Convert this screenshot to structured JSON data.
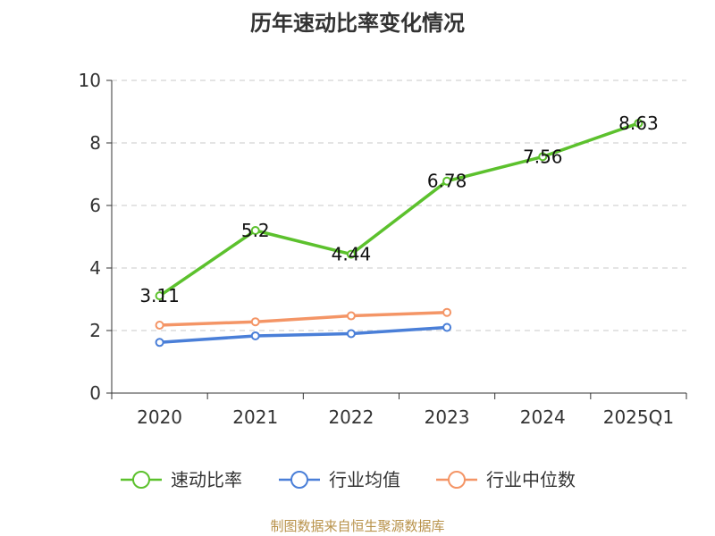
{
  "chart_data": {
    "type": "line",
    "title": "历年速动比率变化情况",
    "categories": [
      "2020",
      "2021",
      "2022",
      "2023",
      "2024",
      "2025Q1"
    ],
    "ylim": [
      0,
      10
    ],
    "yticks": [
      0,
      2,
      4,
      6,
      8,
      10
    ],
    "grid": true,
    "legend_position": "bottom",
    "series": [
      {
        "name": "速动比率",
        "color": "#5cc12d",
        "values": [
          3.11,
          5.2,
          4.44,
          6.78,
          7.56,
          8.63
        ],
        "labels": [
          "3.11",
          "5.2",
          "4.44",
          "6.78",
          "7.56",
          "8.63"
        ]
      },
      {
        "name": "行业均值",
        "color": "#4a7fd8",
        "values": [
          1.62,
          1.83,
          1.9,
          2.1,
          null,
          null
        ]
      },
      {
        "name": "行业中位数",
        "color": "#f49566",
        "values": [
          2.17,
          2.28,
          2.47,
          2.58,
          null,
          null
        ]
      }
    ]
  },
  "source": "制图数据来自恒生聚源数据库"
}
